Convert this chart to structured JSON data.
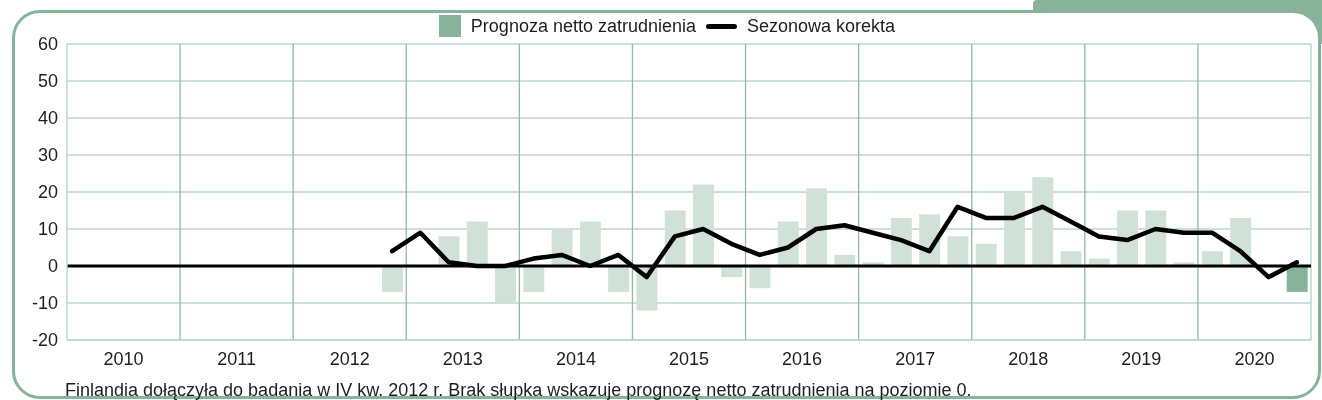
{
  "chart_data": {
    "type": "bar",
    "legend": "top",
    "marker": "none",
    "line_style": "solid",
    "grid": "y",
    "x": [
      2012.875,
      2013.125,
      2013.375,
      2013.625,
      2013.875,
      2014.125,
      2014.375,
      2014.625,
      2014.875,
      2015.125,
      2015.375,
      2015.625,
      2015.875,
      2016.125,
      2016.375,
      2016.625,
      2016.875,
      2017.125,
      2017.375,
      2017.625,
      2017.875,
      2018.125,
      2018.375,
      2018.625,
      2018.875,
      2019.125,
      2019.375,
      2019.625,
      2019.875,
      2020.125,
      2020.375,
      2020.625,
      2020.875
    ],
    "xlim": [
      2010,
      2021
    ],
    "xticks": [
      {
        "value": 2010.5,
        "label": "2010"
      },
      {
        "value": 2011.5,
        "label": "2011"
      },
      {
        "value": 2012.5,
        "label": "2012"
      },
      {
        "value": 2013.5,
        "label": "2013"
      },
      {
        "value": 2014.5,
        "label": "2014"
      },
      {
        "value": 2015.5,
        "label": "2015"
      },
      {
        "value": 2016.5,
        "label": "2016"
      },
      {
        "value": 2017.5,
        "label": "2017"
      },
      {
        "value": 2018.5,
        "label": "2018"
      },
      {
        "value": 2019.5,
        "label": "2019"
      },
      {
        "value": 2020.5,
        "label": "2020"
      }
    ],
    "ylim": [
      -20,
      60
    ],
    "yticks": [
      -20,
      -10,
      0,
      10,
      20,
      30,
      40,
      50,
      60
    ],
    "series": [
      {
        "name": "Prognoza netto zatrudnienia",
        "color": "#86b39a",
        "colors": [
          "#d0e1d7",
          "#d0e1d7",
          "#d0e1d7",
          "#d0e1d7",
          "#d0e1d7",
          "#d0e1d7",
          "#d0e1d7",
          "#d0e1d7",
          "#d0e1d7",
          "#d0e1d7",
          "#d0e1d7",
          "#d0e1d7",
          "#d0e1d7",
          "#d0e1d7",
          "#d0e1d7",
          "#d0e1d7",
          "#d0e1d7",
          "#d0e1d7",
          "#d0e1d7",
          "#d0e1d7",
          "#d0e1d7",
          "#d0e1d7",
          "#d0e1d7",
          "#d0e1d7",
          "#d0e1d7",
          "#d0e1d7",
          "#d0e1d7",
          "#d0e1d7",
          "#d0e1d7",
          "#d0e1d7",
          "#d0e1d7",
          "#d0e1d7",
          "#86b39a"
        ],
        "values": [
          -7,
          0,
          8,
          12,
          -10,
          -7,
          10,
          12,
          -7,
          -12,
          15,
          22,
          -3,
          -6,
          12,
          21,
          3,
          1,
          13,
          14,
          8,
          6,
          20,
          24,
          4,
          2,
          15,
          15,
          1,
          4,
          13,
          0,
          -7
        ]
      },
      {
        "name": "Sezonowa korekta",
        "type": "line",
        "color": "#000000",
        "values": [
          4,
          9,
          1,
          0,
          0,
          2,
          3,
          0,
          3,
          -3,
          8,
          10,
          6,
          3,
          5,
          10,
          11,
          9,
          7,
          4,
          16,
          13,
          13,
          16,
          12,
          8,
          7,
          10,
          9,
          9,
          4,
          -3,
          1
        ]
      }
    ],
    "ref_lines": [
      {
        "axis": "y",
        "value": 0,
        "color": "#000000"
      },
      {
        "axis": "x",
        "value": 2011,
        "color": "#8fbaa3"
      },
      {
        "axis": "x",
        "value": 2012,
        "color": "#8fbaa3"
      },
      {
        "axis": "x",
        "value": 2013,
        "color": "#8fbaa3"
      },
      {
        "axis": "x",
        "value": 2014,
        "color": "#8fbaa3"
      },
      {
        "axis": "x",
        "value": 2015,
        "color": "#8fbaa3"
      },
      {
        "axis": "x",
        "value": 2016,
        "color": "#8fbaa3"
      },
      {
        "axis": "x",
        "value": 2017,
        "color": "#8fbaa3"
      },
      {
        "axis": "x",
        "value": 2018,
        "color": "#8fbaa3"
      },
      {
        "axis": "x",
        "value": 2019,
        "color": "#8fbaa3"
      },
      {
        "axis": "x",
        "value": 2020,
        "color": "#8fbaa3"
      }
    ],
    "annotations": [
      "Finlandia dołączyła do badania w IV kw. 2012 r. Brak słupka wskazuje prognozę netto zatrudnienia na poziomie 0."
    ]
  }
}
